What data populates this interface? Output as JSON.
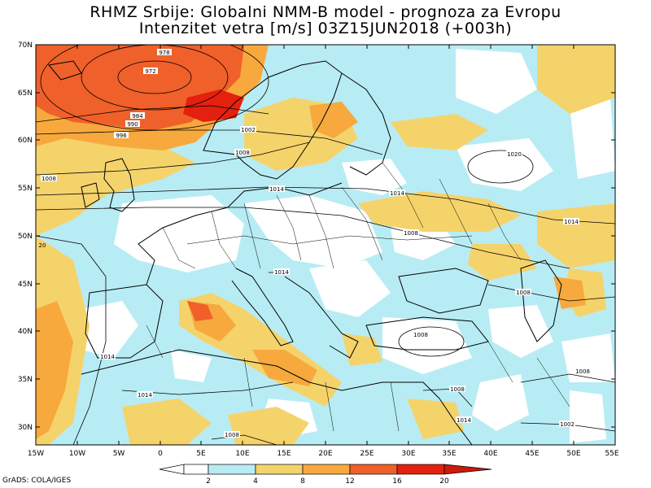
{
  "title": {
    "line1": "RHMZ Srbije: Globalni NMM-B model - prognoza za Evropu",
    "line2": "Intenzitet vetra [m/s] 03Z15JUN2018 (+003h)"
  },
  "axes": {
    "lat_labels": [
      "70N",
      "65N",
      "60N",
      "55N",
      "50N",
      "45N",
      "40N",
      "35N",
      "30N"
    ],
    "lon_labels": [
      "15W",
      "10W",
      "5W",
      "0",
      "5E",
      "10E",
      "15E",
      "20E",
      "25E",
      "30E",
      "35E",
      "40E",
      "45E",
      "50E",
      "55E"
    ]
  },
  "colorbar": {
    "labels": [
      "2",
      "4",
      "8",
      "12",
      "16",
      "20"
    ],
    "colors": [
      "#ffffff",
      "#b8ecf4",
      "#f5d36b",
      "#f7a93e",
      "#f0602a",
      "#e4200e"
    ]
  },
  "isobars": {
    "labels": [
      "978",
      "972",
      "984",
      "990",
      "996",
      "1002",
      "1008",
      "1014",
      "1020",
      "1008",
      "1014",
      "1014",
      "1008",
      "1008",
      "1008",
      "1014",
      "1014",
      "1008",
      "1002",
      "1008",
      "20",
      "1014",
      "1008",
      "1014"
    ]
  },
  "credit": "GrADS: COLA/IGES",
  "colors": {
    "calm": "#ffffff",
    "light": "#b8ecf4",
    "moderate": "#f5d36b",
    "fresh": "#f7a93e",
    "strong": "#f0602a",
    "gale": "#e4200e",
    "coast": "#000000"
  }
}
